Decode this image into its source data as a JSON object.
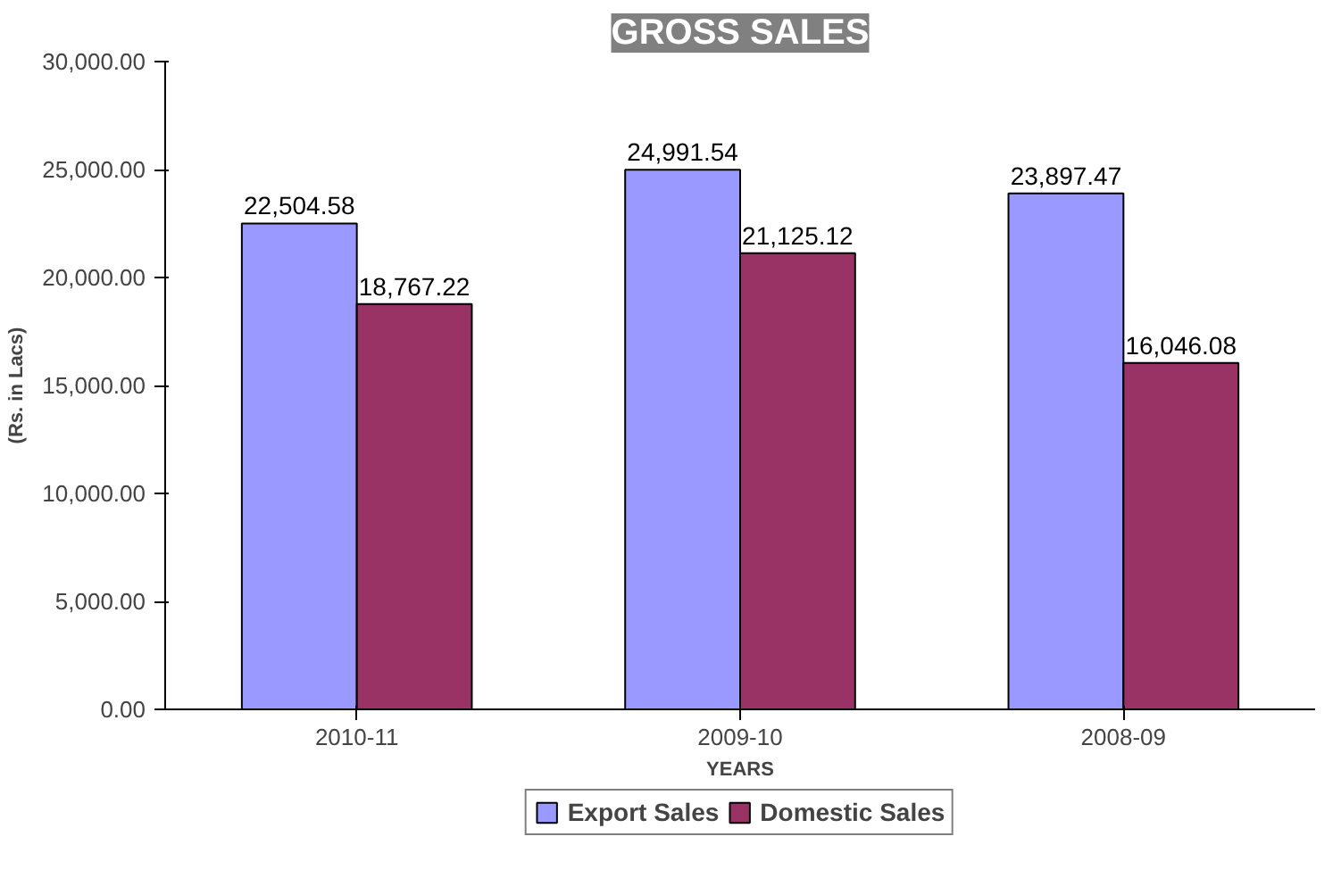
{
  "chart_data": {
    "type": "bar",
    "title": "GROSS SALES",
    "xlabel": "YEARS",
    "ylabel": "(Rs. in Lacs)",
    "categories": [
      "2010-11",
      "2009-10",
      "2008-09"
    ],
    "series": [
      {
        "name": "Export Sales",
        "color": "#9999ff",
        "values": [
          22504.58,
          24991.54,
          23897.47
        ],
        "value_labels": [
          "22,504.58",
          "24,991.54",
          "23,897.47"
        ]
      },
      {
        "name": "Domestic Sales",
        "color": "#993366",
        "values": [
          18767.22,
          21125.12,
          16046.08
        ],
        "value_labels": [
          "18,767.22",
          "21,125.12",
          "16,046.08"
        ]
      }
    ],
    "ylim": [
      0,
      30000
    ],
    "yticks": [
      {
        "value": 0,
        "label": "0.00"
      },
      {
        "value": 5000,
        "label": "5,000.00"
      },
      {
        "value": 10000,
        "label": "10,000.00"
      },
      {
        "value": 15000,
        "label": "15,000.00"
      },
      {
        "value": 20000,
        "label": "20,000.00"
      },
      {
        "value": 25000,
        "label": "25,000.00"
      },
      {
        "value": 30000,
        "label": "30,000.00"
      }
    ],
    "grid": false,
    "legend": "bottom"
  }
}
